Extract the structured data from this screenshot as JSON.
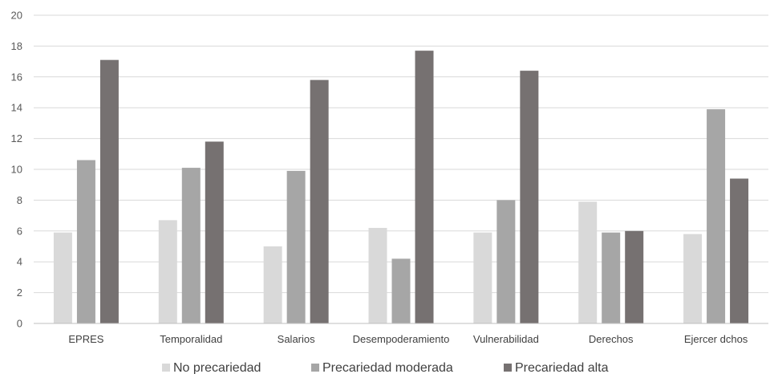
{
  "chart_data": {
    "type": "bar",
    "title": "",
    "xlabel": "",
    "ylabel": "",
    "ylim": [
      0,
      20
    ],
    "yticks": [
      0,
      2,
      4,
      6,
      8,
      10,
      12,
      14,
      16,
      18,
      20
    ],
    "grid": true,
    "legend_position": "bottom",
    "categories": [
      "EPRES",
      "Temporalidad",
      "Salarios",
      "Desempoderamiento",
      "Vulnerabilidad",
      "Derechos",
      "Ejercer dchos"
    ],
    "series": [
      {
        "name": "No precariedad",
        "color": "#d9d9d9",
        "values": [
          5.9,
          6.7,
          5.0,
          6.2,
          5.9,
          7.9,
          5.8
        ]
      },
      {
        "name": "Precariedad moderada",
        "color": "#a6a6a6",
        "values": [
          10.6,
          10.1,
          9.9,
          4.2,
          8.0,
          5.9,
          13.9
        ]
      },
      {
        "name": "Precariedad alta",
        "color": "#767171",
        "values": [
          17.1,
          11.8,
          15.8,
          17.7,
          16.4,
          6.0,
          9.4
        ]
      }
    ]
  }
}
